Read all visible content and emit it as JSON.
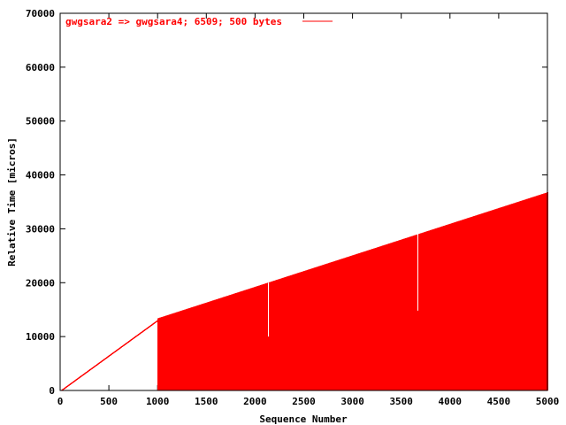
{
  "chart_data": {
    "type": "bar",
    "title": "",
    "xlabel": "Sequence Number",
    "ylabel": "Relative Time [micros]",
    "xlim": [
      0,
      5000
    ],
    "ylim": [
      0,
      70000
    ],
    "x_ticks": [
      0,
      500,
      1000,
      1500,
      2000,
      2500,
      3000,
      3500,
      4000,
      4500,
      5000
    ],
    "y_ticks": [
      0,
      10000,
      20000,
      30000,
      40000,
      50000,
      60000,
      70000
    ],
    "grid": false,
    "legend_position": "top-left",
    "series": [
      {
        "name": "gwgsara2 => gwgsara4; 6509; 500 bytes",
        "color": "#ff0000",
        "style": "impulses",
        "segments": [
          {
            "x_start": 0,
            "x_end": 990,
            "y_start": 0,
            "y_end": 13000
          },
          {
            "x_start": 1000,
            "x_end": 5000,
            "y_start": 13400,
            "y_end": 36800
          }
        ],
        "gaps": [
          {
            "x": 2130,
            "y_from": 10000,
            "y_to": 20000
          },
          {
            "x": 3670,
            "y_from": 14800,
            "y_to": 29500
          }
        ]
      }
    ]
  }
}
